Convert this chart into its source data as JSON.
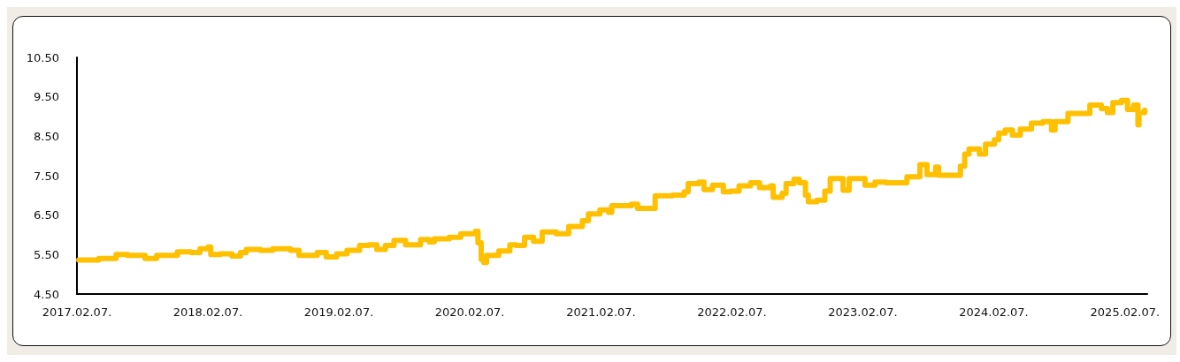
{
  "chart_data": {
    "type": "step",
    "color": "#ffc000",
    "line_style": "solid",
    "marker": "none",
    "grid": false,
    "xlim": [
      "2017-02-07",
      "2025-04-10"
    ],
    "xticks": [
      {
        "value": "2017-02-07",
        "label": "2017.02.07."
      },
      {
        "value": "2018-02-07",
        "label": "2018.02.07."
      },
      {
        "value": "2019-02-07",
        "label": "2019.02.07."
      },
      {
        "value": "2020-02-07",
        "label": "2020.02.07."
      },
      {
        "value": "2021-02-07",
        "label": "2021.02.07."
      },
      {
        "value": "2022-02-07",
        "label": "2022.02.07."
      },
      {
        "value": "2023-02-07",
        "label": "2023.02.07."
      },
      {
        "value": "2024-02-07",
        "label": "2024.02.07."
      },
      {
        "value": "2025-02-07",
        "label": "2025.02.07."
      }
    ],
    "ylim": [
      4.5,
      10.5
    ],
    "yticks": [
      {
        "value": 4.5,
        "label": "4.50"
      },
      {
        "value": 5.5,
        "label": "5.50"
      },
      {
        "value": 6.5,
        "label": "6.50"
      },
      {
        "value": 7.5,
        "label": "7.50"
      },
      {
        "value": 8.5,
        "label": "8.50"
      },
      {
        "value": 9.5,
        "label": "9.50"
      },
      {
        "value": 10.5,
        "label": "10.50"
      }
    ],
    "x": [
      "2017-02-12",
      "2017-04-09",
      "2017-05-27",
      "2017-06-28",
      "2017-08-16",
      "2017-09-17",
      "2017-11-14",
      "2017-12-22",
      "2018-01-16",
      "2018-02-08",
      "2018-02-15",
      "2018-03-14",
      "2018-04-15",
      "2018-05-09",
      "2018-05-25",
      "2018-07-03",
      "2018-08-07",
      "2018-09-25",
      "2018-10-19",
      "2018-11-20",
      "2018-12-09",
      "2019-01-03",
      "2019-02-01",
      "2019-03-02",
      "2019-04-06",
      "2019-05-02",
      "2019-05-24",
      "2019-06-17",
      "2019-07-11",
      "2019-08-12",
      "2019-09-23",
      "2019-10-17",
      "2019-10-31",
      "2019-12-12",
      "2020-01-13",
      "2020-02-23",
      "2020-03-01",
      "2020-03-10",
      "2020-03-17",
      "2020-03-25",
      "2020-04-28",
      "2020-05-29",
      "2020-06-15",
      "2020-07-09",
      "2020-08-03",
      "2020-08-27",
      "2020-10-05",
      "2020-11-09",
      "2020-12-17",
      "2021-01-03",
      "2021-02-04",
      "2021-02-28",
      "2021-03-09",
      "2021-04-09",
      "2021-05-03",
      "2021-05-20",
      "2021-07-08",
      "2021-08-26",
      "2021-09-27",
      "2021-10-08",
      "2021-11-07",
      "2021-11-21",
      "2021-12-15",
      "2022-01-14",
      "2022-02-03",
      "2022-02-27",
      "2022-03-31",
      "2022-04-25",
      "2022-05-26",
      "2022-06-02",
      "2022-06-27",
      "2022-07-08",
      "2022-07-30",
      "2022-08-14",
      "2022-08-31",
      "2022-09-08",
      "2022-10-02",
      "2022-10-24",
      "2022-11-08",
      "2022-12-14",
      "2022-12-31",
      "2023-01-25",
      "2023-02-13",
      "2023-03-13",
      "2023-04-13",
      "2023-05-12",
      "2023-06-10",
      "2023-07-16",
      "2023-08-05",
      "2023-08-29",
      "2023-09-06",
      "2023-10-17",
      "2023-11-06",
      "2023-11-18",
      "2023-11-30",
      "2023-12-29",
      "2024-01-15",
      "2024-02-09",
      "2024-02-21",
      "2024-03-10",
      "2024-03-30",
      "2024-04-21",
      "2024-05-22",
      "2024-06-23",
      "2024-07-17",
      "2024-07-27",
      "2024-08-20",
      "2024-09-01",
      "2024-10-08",
      "2024-11-01",
      "2024-12-03",
      "2024-12-20",
      "2025-01-04",
      "2025-01-28",
      "2025-02-14",
      "2025-03-03",
      "2025-03-15",
      "2025-03-18",
      "2025-04-03"
    ],
    "values": [
      5.36,
      5.4,
      5.5,
      5.48,
      5.4,
      5.48,
      5.57,
      5.55,
      5.65,
      5.69,
      5.5,
      5.52,
      5.46,
      5.55,
      5.63,
      5.61,
      5.65,
      5.61,
      5.48,
      5.48,
      5.55,
      5.44,
      5.52,
      5.61,
      5.73,
      5.75,
      5.63,
      5.73,
      5.86,
      5.75,
      5.88,
      5.82,
      5.9,
      5.94,
      6.03,
      6.09,
      5.8,
      5.38,
      5.3,
      5.48,
      5.59,
      5.75,
      5.73,
      5.94,
      5.84,
      6.07,
      6.03,
      6.21,
      6.36,
      6.53,
      6.63,
      6.57,
      6.74,
      6.74,
      6.78,
      6.67,
      6.99,
      7.01,
      7.09,
      7.3,
      7.34,
      7.15,
      7.26,
      7.09,
      7.11,
      7.24,
      7.32,
      7.2,
      7.24,
      6.95,
      7.05,
      7.3,
      7.41,
      7.32,
      7.01,
      6.84,
      6.88,
      7.11,
      7.43,
      7.13,
      7.43,
      7.43,
      7.26,
      7.34,
      7.32,
      7.32,
      7.47,
      7.78,
      7.53,
      7.72,
      7.51,
      7.51,
      7.74,
      8.05,
      8.18,
      8.05,
      8.3,
      8.41,
      8.58,
      8.66,
      8.53,
      8.68,
      8.83,
      8.87,
      8.66,
      8.87,
      8.87,
      9.08,
      9.08,
      9.29,
      9.2,
      9.1,
      9.35,
      9.41,
      9.18,
      9.29,
      8.79,
      9.1,
      9.16
    ]
  }
}
